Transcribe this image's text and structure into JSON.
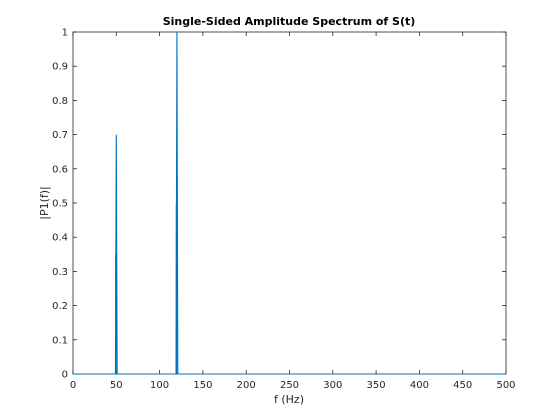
{
  "chart_data": {
    "type": "line",
    "title": "Single-Sided Amplitude Spectrum of S(t)",
    "xlabel": "f (Hz)",
    "ylabel": "|P1(f)|",
    "xlim": [
      0,
      500
    ],
    "ylim": [
      0,
      1
    ],
    "xticks": [
      0,
      50,
      100,
      150,
      200,
      250,
      300,
      350,
      400,
      450,
      500
    ],
    "yticks": [
      0,
      0.1,
      0.2,
      0.3,
      0.4,
      0.5,
      0.6,
      0.7,
      0.8,
      0.9,
      1
    ],
    "grid": false,
    "line_color": "#0072BD",
    "series": [
      {
        "x": [
          0,
          49,
          50,
          51,
          119,
          120,
          121,
          500
        ],
        "y": [
          0,
          0,
          0.7,
          0,
          0,
          1.0,
          0,
          0
        ]
      }
    ],
    "annotations": [
      {
        "x": 49.6,
        "y": 0.35
      },
      {
        "x": 119.6,
        "y": 0.5
      }
    ]
  }
}
